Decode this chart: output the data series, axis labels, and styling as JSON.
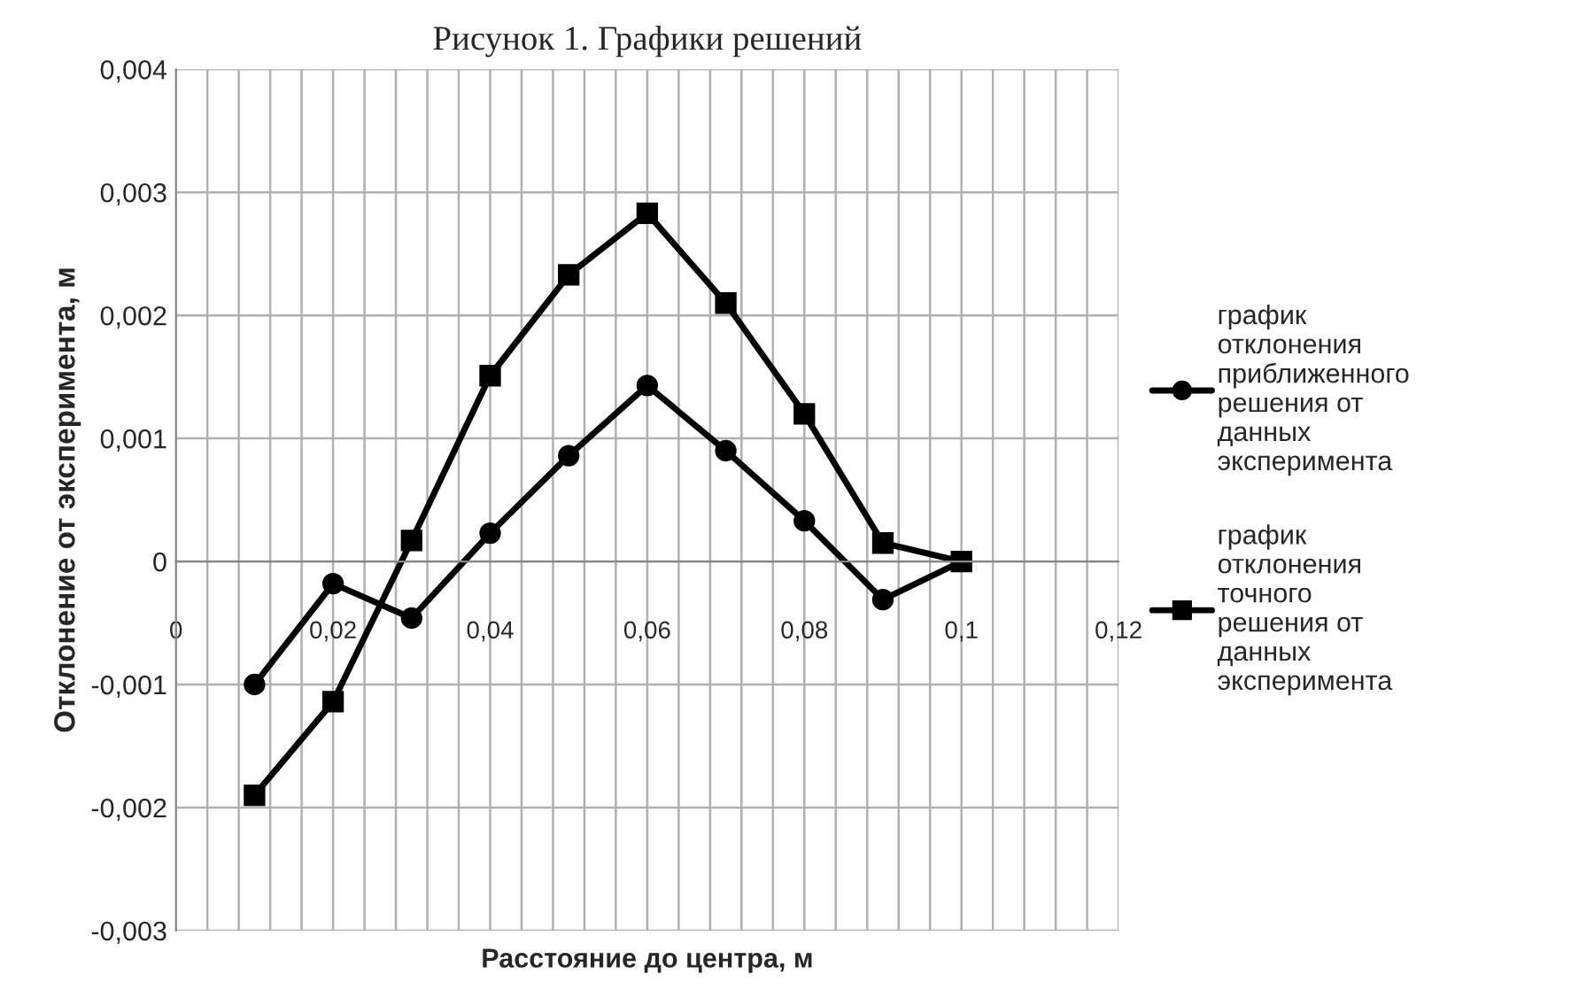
{
  "chart_data": {
    "type": "line",
    "title": "Рисунок 1. Графики решений",
    "xlabel": "Расстояние до центра, м",
    "ylabel": "Отклонение от эксперимента, м",
    "x": [
      0.01,
      0.02,
      0.03,
      0.04,
      0.05,
      0.06,
      0.07,
      0.08,
      0.09,
      0.1
    ],
    "series": [
      {
        "name": "график\nотклонения\nприближенного\nрешения от\nданных\nэксперимента",
        "color": "#000000",
        "marker": "circle",
        "values": [
          -0.001,
          -0.00018,
          -0.00046,
          0.00023,
          0.00086,
          0.00143,
          0.0009,
          0.00033,
          -0.00031,
          0.0
        ]
      },
      {
        "name": "график\nотклонения\nточного\nрешения от\nданных\nэксперимента",
        "color": "#000000",
        "marker": "square",
        "values": [
          -0.0019,
          -0.00114,
          0.00017,
          0.00151,
          0.00233,
          0.00283,
          0.0021,
          0.0012,
          0.00015,
          0.0
        ]
      }
    ],
    "xlim": [
      0,
      0.12
    ],
    "xticks": [
      {
        "value": 0,
        "label": "0"
      },
      {
        "value": 0.004,
        "label": null
      },
      {
        "value": 0.008,
        "label": null
      },
      {
        "value": 0.012,
        "label": null
      },
      {
        "value": 0.016,
        "label": null
      },
      {
        "value": 0.02,
        "label": "0,02"
      },
      {
        "value": 0.024,
        "label": null
      },
      {
        "value": 0.028,
        "label": null
      },
      {
        "value": 0.032,
        "label": null
      },
      {
        "value": 0.036,
        "label": null
      },
      {
        "value": 0.04,
        "label": "0,04"
      },
      {
        "value": 0.044,
        "label": null
      },
      {
        "value": 0.048,
        "label": null
      },
      {
        "value": 0.052,
        "label": null
      },
      {
        "value": 0.056,
        "label": null
      },
      {
        "value": 0.06,
        "label": "0,06"
      },
      {
        "value": 0.064,
        "label": null
      },
      {
        "value": 0.068,
        "label": null
      },
      {
        "value": 0.072,
        "label": null
      },
      {
        "value": 0.076,
        "label": null
      },
      {
        "value": 0.08,
        "label": "0,08"
      },
      {
        "value": 0.084,
        "label": null
      },
      {
        "value": 0.088,
        "label": null
      },
      {
        "value": 0.092,
        "label": null
      },
      {
        "value": 0.096,
        "label": null
      },
      {
        "value": 0.1,
        "label": "0,1"
      },
      {
        "value": 0.104,
        "label": null
      },
      {
        "value": 0.108,
        "label": null
      },
      {
        "value": 0.112,
        "label": null
      },
      {
        "value": 0.116,
        "label": null
      },
      {
        "value": 0.12,
        "label": "0,12"
      }
    ],
    "ylim": [
      -0.003,
      0.004
    ],
    "yticks": [
      {
        "value": -0.003,
        "label": "-0,003"
      },
      {
        "value": -0.002,
        "label": "-0,002"
      },
      {
        "value": -0.001,
        "label": "-0,001"
      },
      {
        "value": 0,
        "label": "0"
      },
      {
        "value": 0.001,
        "label": "0,001"
      },
      {
        "value": 0.002,
        "label": "0,002"
      },
      {
        "value": 0.003,
        "label": "0,003"
      },
      {
        "value": 0.004,
        "label": "0,004"
      }
    ],
    "grid": true,
    "legend": "right",
    "line_style": "solid"
  }
}
